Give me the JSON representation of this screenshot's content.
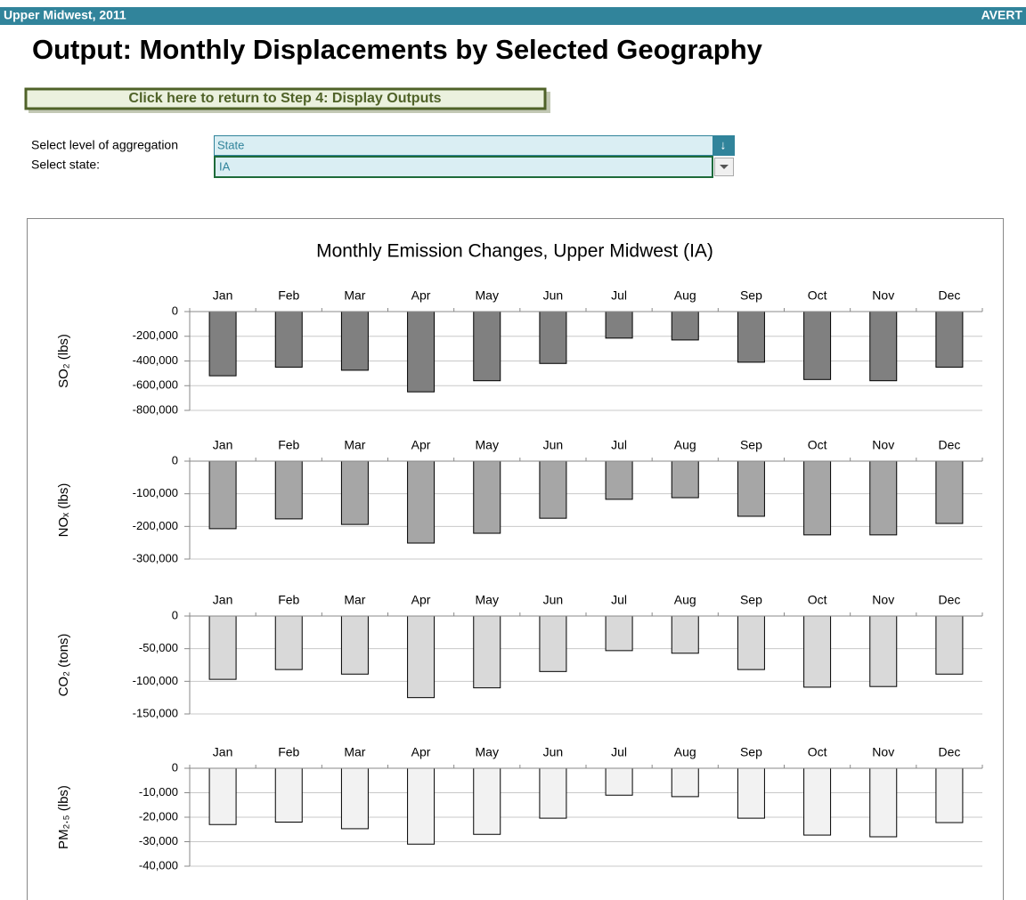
{
  "header": {
    "region": "Upper Midwest, 2011",
    "app": "AVERT"
  },
  "heading": "Output: Monthly Displacements by Selected Geography",
  "button": "Click here to return to Step 4: Display Outputs",
  "controls": [
    {
      "label": "Select level of aggregation",
      "value": "State"
    },
    {
      "label": "Select state:",
      "value": "IA"
    }
  ],
  "chart_title": "Monthly Emission Changes, Upper Midwest (IA)",
  "chart_data": [
    {
      "type": "bar",
      "ylabel": "SO₂ (lbs)",
      "color": "#808080",
      "grid": true,
      "categories": [
        "Jan",
        "Feb",
        "Mar",
        "Apr",
        "May",
        "Jun",
        "Jul",
        "Aug",
        "Sep",
        "Oct",
        "Nov",
        "Dec"
      ],
      "values": [
        -520000,
        -450000,
        -475000,
        -650000,
        -560000,
        -420000,
        -215000,
        -230000,
        -410000,
        -550000,
        -560000,
        -450000
      ],
      "ylim": [
        -800000,
        0
      ],
      "yticks": [
        0,
        {
          "value": -200000,
          "label": "-200,000"
        },
        {
          "value": -400000,
          "label": "-400,000"
        },
        {
          "value": -600000,
          "label": "-600,000"
        },
        {
          "value": -800000,
          "label": "-800,000"
        }
      ]
    },
    {
      "type": "bar",
      "ylabel": "NOₓ (lbs)",
      "color": "#a6a6a6",
      "grid": true,
      "categories": [
        "Jan",
        "Feb",
        "Mar",
        "Apr",
        "May",
        "Jun",
        "Jul",
        "Aug",
        "Sep",
        "Oct",
        "Nov",
        "Dec"
      ],
      "values": [
        -207000,
        -177000,
        -194000,
        -251000,
        -221000,
        -175000,
        -117000,
        -112000,
        -169000,
        -226000,
        -226000,
        -191000
      ],
      "ylim": [
        -300000,
        0
      ],
      "yticks": [
        0,
        {
          "value": -100000,
          "label": "-100,000"
        },
        {
          "value": -200000,
          "label": "-200,000"
        },
        {
          "value": -300000,
          "label": "-300,000"
        }
      ]
    },
    {
      "type": "bar",
      "ylabel": "CO₂ (tons)",
      "color": "#d9d9d9",
      "grid": true,
      "categories": [
        "Jan",
        "Feb",
        "Mar",
        "Apr",
        "May",
        "Jun",
        "Jul",
        "Aug",
        "Sep",
        "Oct",
        "Nov",
        "Dec"
      ],
      "values": [
        -97000,
        -82000,
        -89000,
        -125000,
        -110000,
        -85000,
        -53000,
        -57000,
        -82000,
        -109000,
        -108000,
        -89000
      ],
      "ylim": [
        -150000,
        0
      ],
      "yticks": [
        0,
        {
          "value": -50000,
          "label": "-50,000"
        },
        {
          "value": -100000,
          "label": "-100,000"
        },
        {
          "value": -150000,
          "label": "-150,000"
        }
      ]
    },
    {
      "type": "bar",
      "ylabel": "PM₂.₅ (lbs)",
      "color": "#f2f2f2",
      "grid": true,
      "categories": [
        "Jan",
        "Feb",
        "Mar",
        "Apr",
        "May",
        "Jun",
        "Jul",
        "Aug",
        "Sep",
        "Oct",
        "Nov",
        "Dec"
      ],
      "values": [
        -23000,
        -22000,
        -24700,
        -31000,
        -27000,
        -20400,
        -11000,
        -11600,
        -20400,
        -27300,
        -28000,
        -22200
      ],
      "ylim": [
        -40000,
        0
      ],
      "yticks": [
        0,
        {
          "value": -10000,
          "label": "-10,000"
        },
        {
          "value": -20000,
          "label": "-20,000"
        },
        {
          "value": -30000,
          "label": "-30,000"
        },
        {
          "value": -40000,
          "label": "-40,000"
        }
      ]
    }
  ]
}
